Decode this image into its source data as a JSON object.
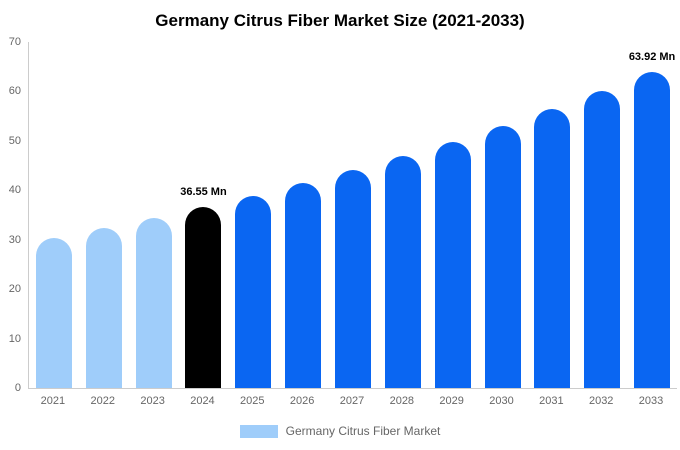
{
  "title": "Germany Citrus Fiber Market Size (2021-2033)",
  "colors": {
    "light_blue": "#9FCDFA",
    "blue": "#0A66F2",
    "black": "#000000",
    "axis_line": "#CCCCCC",
    "axis_text": "#666666",
    "title_text": "#000000"
  },
  "chart_data": {
    "type": "bar",
    "title": "Germany Citrus Fiber Market Size (2021-2033)",
    "categories": [
      "2021",
      "2022",
      "2023",
      "2024",
      "2025",
      "2026",
      "2027",
      "2028",
      "2029",
      "2030",
      "2031",
      "2032",
      "2033"
    ],
    "values": [
      30.34,
      32.28,
      34.35,
      36.55,
      38.89,
      41.38,
      44.03,
      46.86,
      49.86,
      53.05,
      56.45,
      60.07,
      63.92
    ],
    "unit": "Mn",
    "xlabel": "",
    "ylabel": "",
    "ylim": [
      0,
      70
    ],
    "yticks": [
      0,
      10,
      20,
      30,
      40,
      50,
      60,
      70
    ],
    "grid": false,
    "bar_colors": [
      "#9FCDFA",
      "#9FCDFA",
      "#9FCDFA",
      "#000000",
      "#0A66F2",
      "#0A66F2",
      "#0A66F2",
      "#0A66F2",
      "#0A66F2",
      "#0A66F2",
      "#0A66F2",
      "#0A66F2",
      "#0A66F2"
    ],
    "annotations": [
      {
        "category": "2024",
        "text": "36.55 Mn"
      },
      {
        "category": "2033",
        "text": "63.92 Mn"
      }
    ],
    "legend": {
      "position": "bottom",
      "label": "Germany Citrus Fiber Market",
      "swatch_color": "#9FCDFA"
    }
  }
}
